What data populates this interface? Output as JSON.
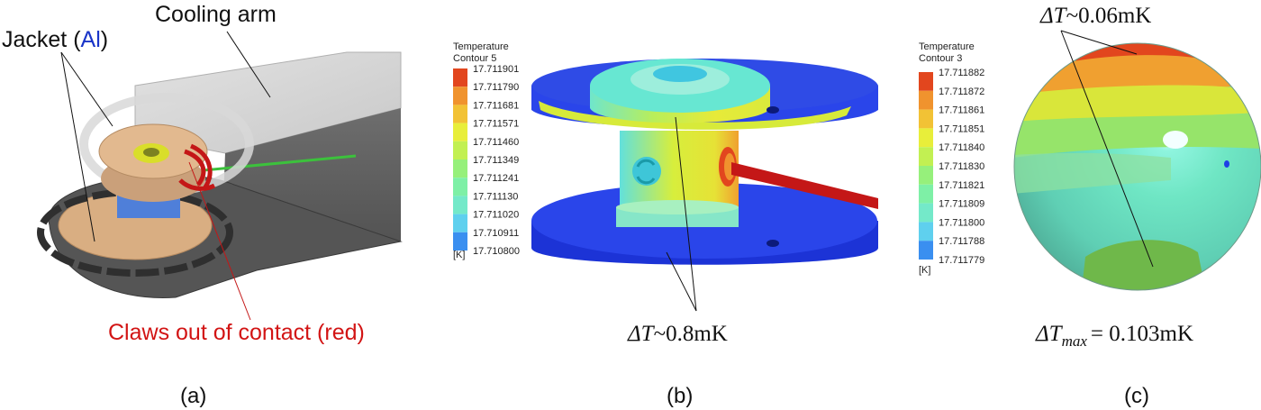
{
  "panel_a": {
    "label": "(a)",
    "cooling_arm_label": "Cooling arm",
    "jacket_label_prefix": "Jacket (",
    "jacket_label_material": "Al",
    "jacket_label_suffix": ")",
    "claws_label": "Claws out of contact (red)",
    "colors": {
      "claws": "#d21414",
      "material": "#1a35c8"
    }
  },
  "panel_b": {
    "label": "(b)",
    "legend_title_line1": "Temperature",
    "legend_title_line2": "Contour 5",
    "legend_unit": "[K]",
    "legend_values": [
      "17.711901",
      "17.711790",
      "17.711681",
      "17.711571",
      "17.711460",
      "17.711349",
      "17.711241",
      "17.711130",
      "17.711020",
      "17.710911",
      "17.710800"
    ],
    "annotation_prefix": "ΔT",
    "annotation_value": "~0.8mK"
  },
  "panel_c": {
    "label": "(c)",
    "legend_title_line1": "Temperature",
    "legend_title_line2": "Contour 3",
    "legend_unit": "[K]",
    "legend_values": [
      "17.711882",
      "17.711872",
      "17.711861",
      "17.711851",
      "17.711840",
      "17.711830",
      "17.711821",
      "17.711809",
      "17.711800",
      "17.711788",
      "17.711779"
    ],
    "top_annotation_prefix": "ΔT",
    "top_annotation_value": "~0.06mK",
    "bottom_annotation_prefix": "ΔT",
    "bottom_annotation_subscript": "max",
    "bottom_annotation_value": "= 0.103mK"
  },
  "colormap": [
    "#1f3fe6",
    "#3a8ff0",
    "#5fd0ee",
    "#74e9c9",
    "#7ef0a6",
    "#96f07b",
    "#c2f052",
    "#e8ee3a",
    "#f2c235",
    "#f0932e",
    "#e2461e"
  ]
}
